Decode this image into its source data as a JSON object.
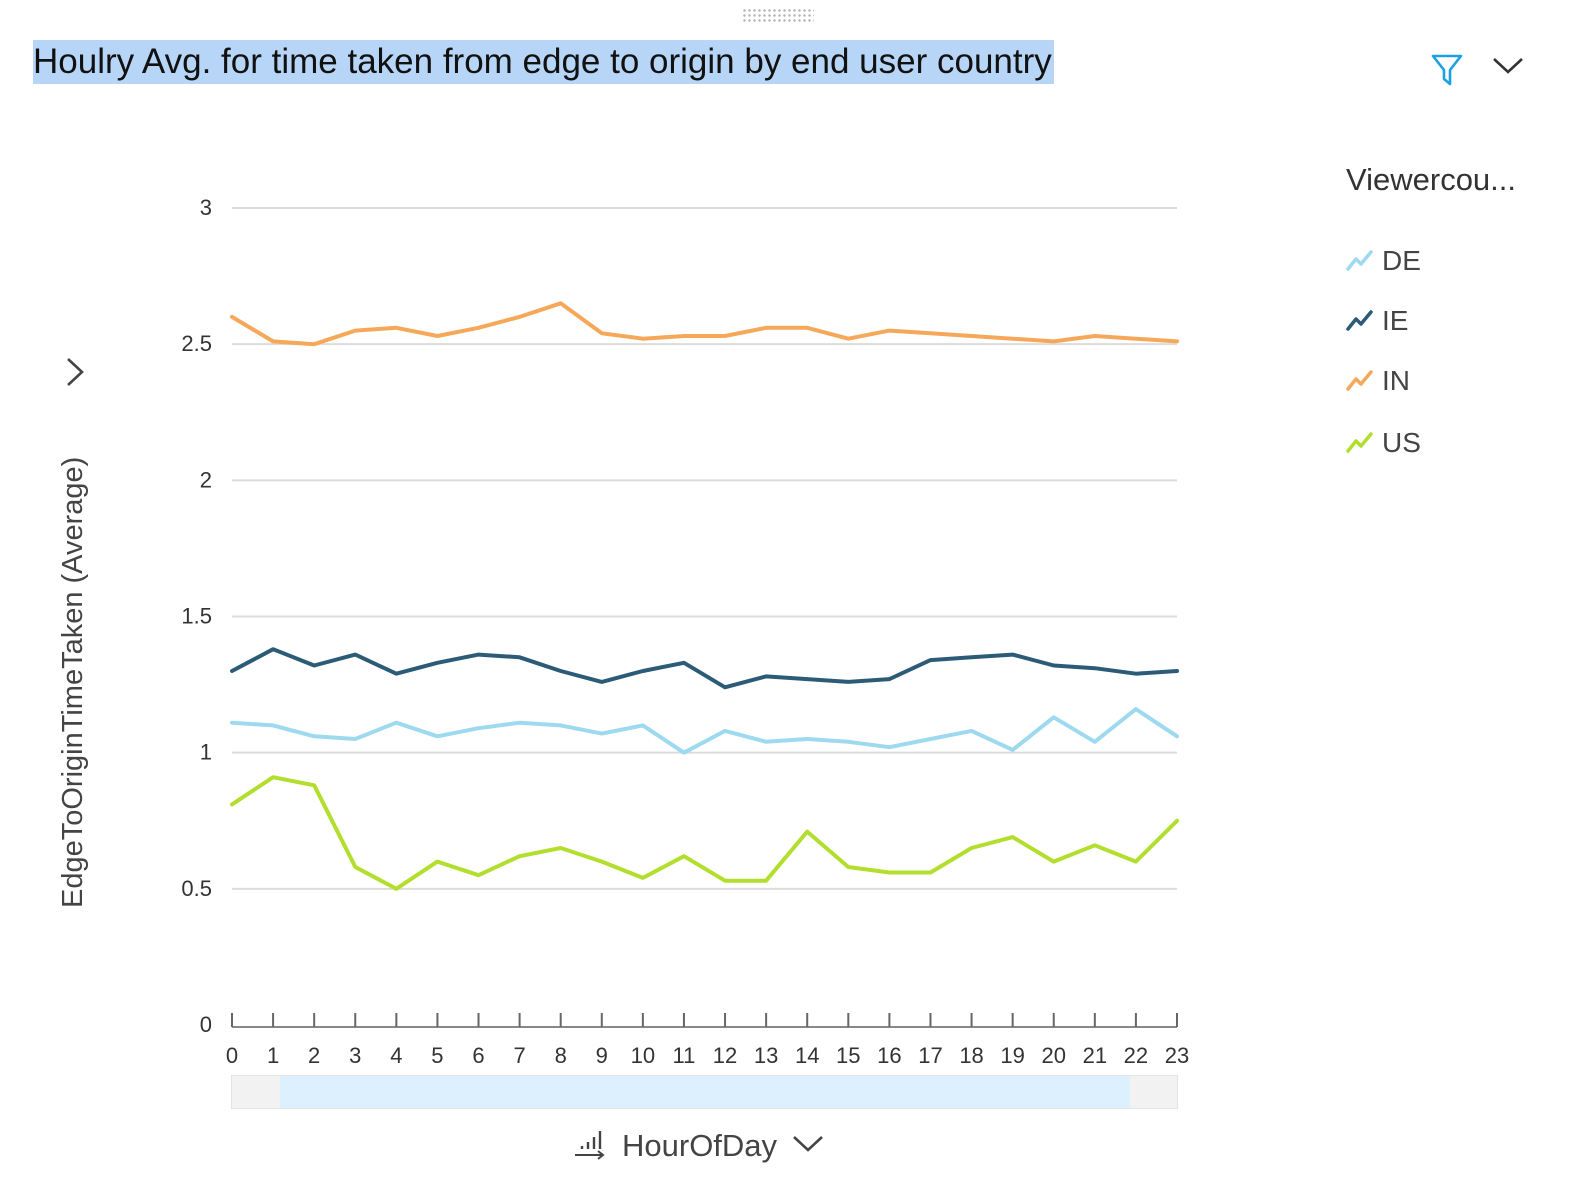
{
  "header": {
    "title": "Houlry Avg. for time taken from edge to origin by end user country"
  },
  "x_axis_control": {
    "label": "HourOfDay"
  },
  "legend": {
    "title": "Viewercou...",
    "items": [
      {
        "label": "DE",
        "color": "#9dd9ef"
      },
      {
        "label": "IE",
        "color": "#2c5b77"
      },
      {
        "label": "IN",
        "color": "#f5a85a"
      },
      {
        "label": "US",
        "color": "#b2de2e"
      }
    ]
  },
  "scrollbar": {
    "visible_range": [
      1,
      22
    ]
  },
  "chart_data": {
    "type": "line",
    "title": "Houlry Avg. for time taken from edge to origin by end user country",
    "xlabel": "HourOfDay",
    "ylabel": "EdgeToOriginTimeTaken (Average)",
    "x": [
      0,
      1,
      2,
      3,
      4,
      5,
      6,
      7,
      8,
      9,
      10,
      11,
      12,
      13,
      14,
      15,
      16,
      17,
      18,
      19,
      20,
      21,
      22,
      23
    ],
    "ylim": [
      0,
      3
    ],
    "yticks": [
      "0",
      "0.5",
      "1",
      "1.5",
      "2",
      "2.5",
      "3"
    ],
    "grid": true,
    "legend_position": "right",
    "series": [
      {
        "name": "DE",
        "color": "#9dd9ef",
        "values": [
          1.11,
          1.1,
          1.06,
          1.05,
          1.11,
          1.06,
          1.09,
          1.11,
          1.1,
          1.07,
          1.1,
          1.0,
          1.08,
          1.04,
          1.05,
          1.04,
          1.02,
          1.05,
          1.08,
          1.01,
          1.13,
          1.04,
          1.16,
          1.06
        ]
      },
      {
        "name": "IE",
        "color": "#2c5b77",
        "values": [
          1.3,
          1.38,
          1.32,
          1.36,
          1.29,
          1.33,
          1.36,
          1.35,
          1.3,
          1.26,
          1.3,
          1.33,
          1.24,
          1.28,
          1.27,
          1.26,
          1.27,
          1.34,
          1.35,
          1.36,
          1.32,
          1.31,
          1.29,
          1.3
        ]
      },
      {
        "name": "IN",
        "color": "#f5a85a",
        "values": [
          2.6,
          2.51,
          2.5,
          2.55,
          2.56,
          2.53,
          2.56,
          2.6,
          2.65,
          2.54,
          2.52,
          2.53,
          2.53,
          2.56,
          2.56,
          2.52,
          2.55,
          2.54,
          2.53,
          2.52,
          2.51,
          2.53,
          2.52,
          2.51
        ]
      },
      {
        "name": "US",
        "color": "#b2de2e",
        "values": [
          0.81,
          0.91,
          0.88,
          0.58,
          0.5,
          0.6,
          0.55,
          0.62,
          0.65,
          0.6,
          0.54,
          0.62,
          0.53,
          0.53,
          0.71,
          0.58,
          0.56,
          0.56,
          0.65,
          0.69,
          0.6,
          0.66,
          0.6,
          0.75
        ]
      }
    ]
  }
}
